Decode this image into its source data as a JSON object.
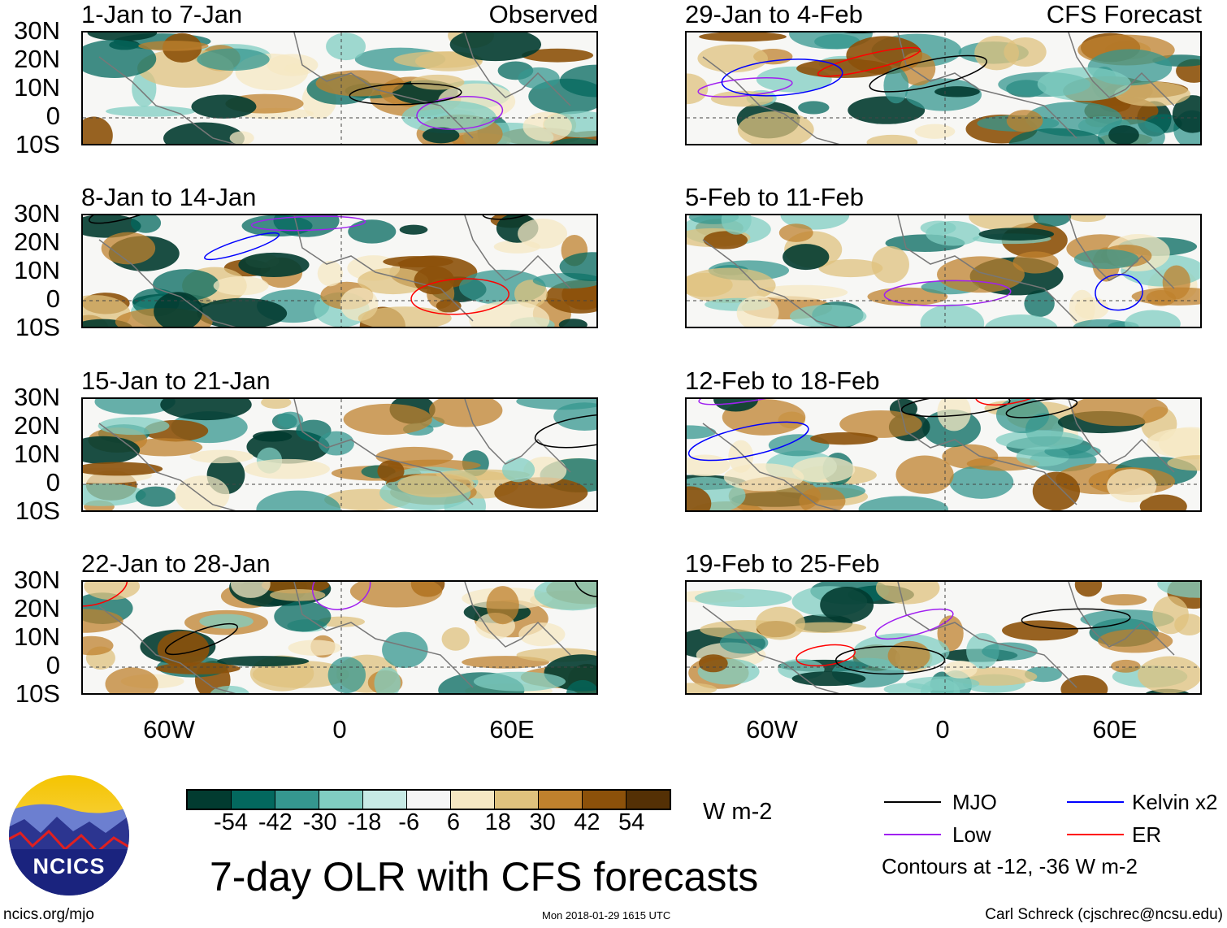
{
  "panels_left": [
    {
      "title": "1-Jan to 7-Jan",
      "label": "Observed"
    },
    {
      "title": "8-Jan to 14-Jan",
      "label": ""
    },
    {
      "title": "15-Jan to 21-Jan",
      "label": ""
    },
    {
      "title": "22-Jan to 28-Jan",
      "label": ""
    }
  ],
  "panels_right": [
    {
      "title": "29-Jan to 4-Feb",
      "label": "CFS Forecast"
    },
    {
      "title": "5-Feb to 11-Feb",
      "label": ""
    },
    {
      "title": "12-Feb to 18-Feb",
      "label": ""
    },
    {
      "title": "19-Feb to 25-Feb",
      "label": ""
    }
  ],
  "lat_labels": [
    "30N",
    "20N",
    "10N",
    "0",
    "10S"
  ],
  "lon_labels": [
    "60W",
    "0",
    "60E"
  ],
  "colorbar": {
    "colors": [
      "#023b30",
      "#03685e",
      "#35978f",
      "#80cdc1",
      "#c7eae5",
      "#f5f5f5",
      "#f6e8c3",
      "#dfc27d",
      "#bf812d",
      "#8c510a",
      "#543005"
    ],
    "labels": [
      "-54",
      "-42",
      "-30",
      "-18",
      "-6",
      "6",
      "18",
      "30",
      "42",
      "54"
    ],
    "units": "W m-2"
  },
  "legend": {
    "items": [
      {
        "label": "MJO",
        "color": "#000000"
      },
      {
        "label": "Kelvin x2",
        "color": "#0000ff"
      },
      {
        "label": "Low",
        "color": "#a020f0"
      },
      {
        "label": "ER",
        "color": "#ff0000"
      }
    ],
    "note": "Contours at -12, -36 W m-2"
  },
  "logo": {
    "text": "NCICS"
  },
  "title": "7-day OLR with CFS forecasts",
  "footer": {
    "left": "ncics.org/mjo",
    "center": "Mon 2018-01-29 1615 UTC",
    "right": "Carl Schreck (cjschrec@ncsu.edu)"
  }
}
